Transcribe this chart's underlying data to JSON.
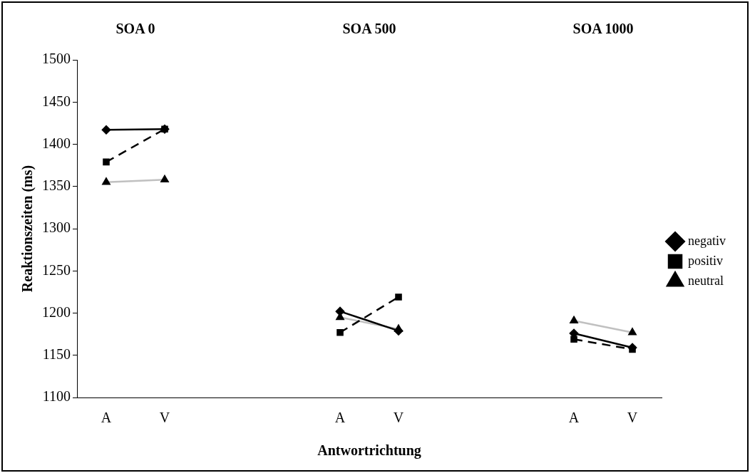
{
  "chart_data": {
    "type": "line",
    "xlabel": "Antwortrichtung",
    "ylabel": "Reaktionszeiten (ms)",
    "categories": [
      "A",
      "V",
      null,
      null,
      "A",
      "V",
      null,
      null,
      "A",
      "V"
    ],
    "annotations": [
      "SOA 0",
      "SOA 500",
      "SOA 1000"
    ],
    "ylim": [
      1100,
      1500
    ],
    "yticks": [
      1100,
      1150,
      1200,
      1250,
      1300,
      1350,
      1400,
      1450,
      1500
    ],
    "grid": false,
    "legend": "right",
    "series": [
      {
        "name": "negativ",
        "color": "#000000",
        "marker": "diamond",
        "line_style": "solid",
        "values": [
          1417,
          1418,
          null,
          null,
          1202,
          1179,
          null,
          null,
          1176,
          1159
        ]
      },
      {
        "name": "positiv",
        "color": "#000000",
        "marker": "square",
        "line_style": "dashed",
        "values": [
          1379,
          1418,
          null,
          null,
          1177,
          1219,
          null,
          null,
          1169,
          1157
        ]
      },
      {
        "name": "neutral",
        "color": "#c0c0c0",
        "marker": "triangle",
        "line_style": "solid",
        "values": [
          1355,
          1358,
          null,
          null,
          1195,
          1181,
          null,
          null,
          1191,
          1177
        ]
      }
    ]
  }
}
